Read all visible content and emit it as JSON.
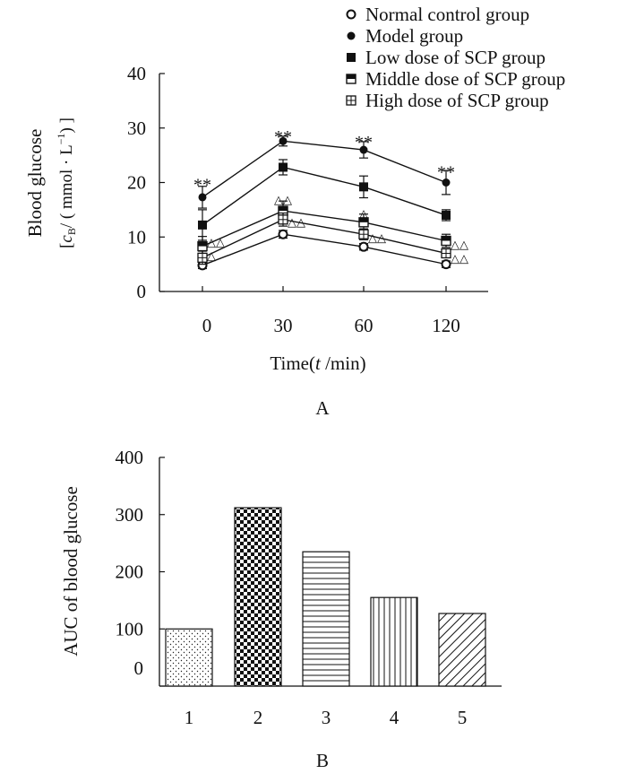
{
  "chart_data": [
    {
      "panel": "A",
      "type": "line",
      "panel_label": "A",
      "xlabel_prefix": "Time(",
      "xlabel_var": "t",
      "xlabel_suffix": " /min)",
      "ylabel_line1": "Blood glucose",
      "ylabel_line2_prefix": "[",
      "ylabel_line2_var": "c",
      "ylabel_line2_sub": "B",
      "ylabel_line2_rest": "/ ( mmol · L",
      "ylabel_line2_sup": "−1",
      "ylabel_line2_end": ") ]",
      "categories": [
        "0",
        "30",
        "60",
        "120"
      ],
      "ylim": [
        0,
        40
      ],
      "yticks": [
        "0",
        "10",
        "20",
        "30",
        "40"
      ],
      "series": [
        {
          "name": "Normal control group",
          "marker": "open-circle",
          "values": [
            4.8,
            10.5,
            8.2,
            5.0
          ],
          "errors": [
            0.6,
            0.7,
            0.6,
            0.6
          ]
        },
        {
          "name": "Model group",
          "marker": "filled-circle",
          "values": [
            17.3,
            27.6,
            26.0,
            20.0
          ],
          "errors": [
            2.0,
            0.9,
            1.5,
            2.2
          ]
        },
        {
          "name": "Low dose of SCP group",
          "marker": "filled-square",
          "values": [
            12.2,
            22.8,
            19.2,
            14.0
          ],
          "errors": [
            2.8,
            1.4,
            2.0,
            1.0
          ]
        },
        {
          "name": "Middle dose of SCP group",
          "marker": "half-square",
          "values": [
            8.3,
            14.8,
            12.7,
            9.3
          ],
          "errors": [
            1.8,
            1.8,
            1.5,
            1.2
          ]
        },
        {
          "name": "High dose of SCP group",
          "marker": "cross-square",
          "values": [
            6.2,
            13.2,
            10.5,
            7.0
          ],
          "errors": [
            1.2,
            1.2,
            1.0,
            0.8
          ]
        }
      ],
      "annotations": [
        {
          "text": "**",
          "category": "0",
          "y": 20.5
        },
        {
          "text": "**",
          "category": "30",
          "y": 29.3
        },
        {
          "text": "**",
          "category": "60",
          "y": 28.3
        },
        {
          "text": "**",
          "category": "120",
          "y": 22.8
        },
        {
          "text": "△△",
          "category": "0",
          "y": 9.0,
          "side": "right"
        },
        {
          "text": "△",
          "category": "0",
          "y": 6.5,
          "side": "right"
        },
        {
          "text": "△△",
          "category": "30",
          "y": 16.8,
          "side": "center"
        },
        {
          "text": "△△",
          "category": "30",
          "y": 12.7,
          "side": "right"
        },
        {
          "text": "△",
          "category": "60",
          "y": 14.2,
          "side": "center"
        },
        {
          "text": "△△",
          "category": "60",
          "y": 9.8,
          "side": "right"
        },
        {
          "text": "△△",
          "category": "120",
          "y": 8.6,
          "side": "right"
        },
        {
          "text": "△△",
          "category": "120",
          "y": 6.0,
          "side": "right"
        }
      ],
      "legend": [
        {
          "name": "Normal control group",
          "marker": "open-circle"
        },
        {
          "name": "Model group",
          "marker": "filled-circle"
        },
        {
          "name": "Low dose of SCP group",
          "marker": "filled-square"
        },
        {
          "name": "Middle dose of SCP group",
          "marker": "half-square"
        },
        {
          "name": "High dose of SCP group",
          "marker": "cross-square"
        }
      ]
    },
    {
      "panel": "B",
      "type": "bar",
      "panel_label": "B",
      "ylabel": "AUC of blood glucose",
      "categories": [
        "1",
        "2",
        "3",
        "4",
        "5"
      ],
      "values": [
        100,
        312,
        235,
        155,
        127
      ],
      "patterns": [
        "dots",
        "checker",
        "hlines",
        "vlines",
        "diagonal"
      ],
      "ylim": [
        0,
        400
      ],
      "yticks": [
        "0",
        "100",
        "200",
        "300",
        "400"
      ]
    }
  ]
}
